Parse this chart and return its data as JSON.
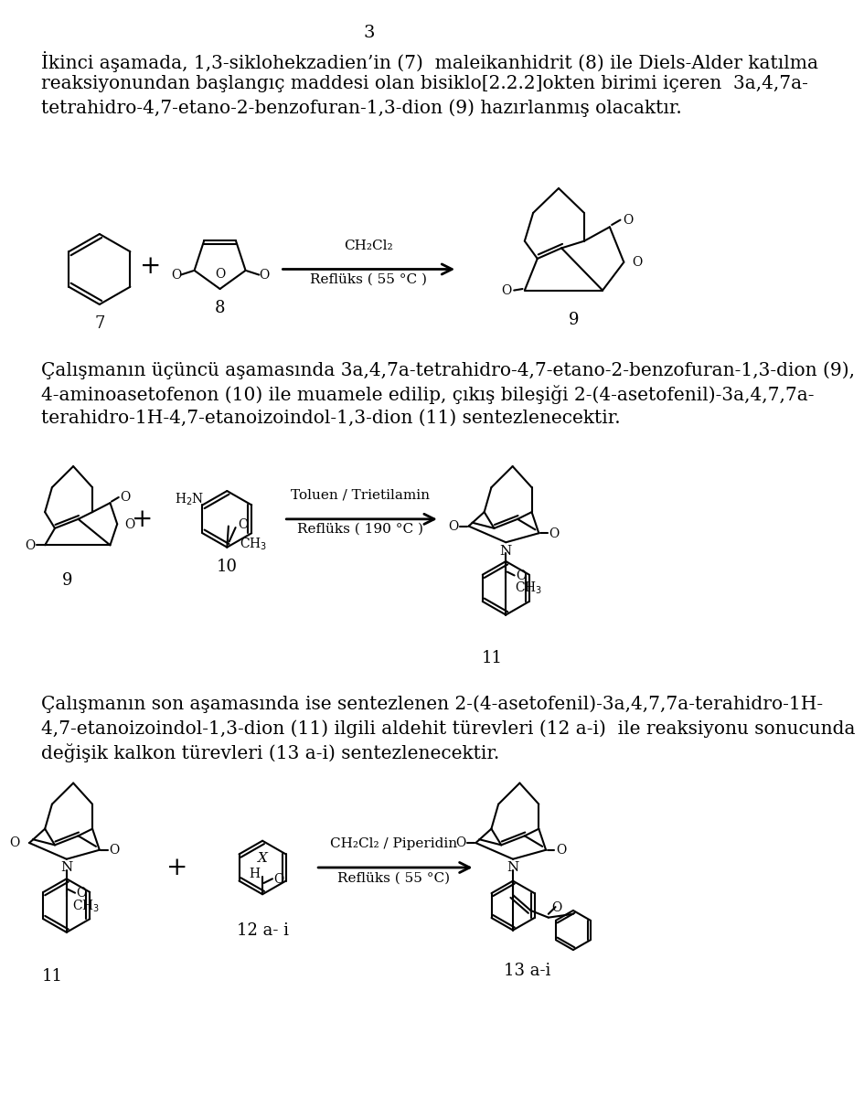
{
  "page_number": "3",
  "bg_color": "#ffffff",
  "para1_line1": "İkinci aşamada, 1,3-siklohekzadien’in (7)  maleikanhidrit (8) ile Diels-Alder katılma",
  "para1_line2": "reaksiyonundan başlangıç maddesi olan bisiklo[2.2.2]okten birimi içeren  3a,4,7a-",
  "para1_line3": "tetrahidro-4,7-etano-2-benzofuran-1,3-dion (9) hazırlanmış olacaktır.",
  "para2_line1": "Çalışmanın üçüncü aşamasında 3a,4,7a-tetrahidro-4,7-etano-2-benzofuran-1,3-dion (9),",
  "para2_line2": "4-aminoasetofenon (10) ile muamele edilip, çıkış bileşiği 2-(4-asetofenil)-3a,4,7,7a-",
  "para2_line3": "terahidro-1H-4,7-etanoizoindol-1,3-dion (11) sentezlenecektir.",
  "para3_line1": "Çalışmanın son aşamasında ise sentezlenen 2-(4-asetofenil)-3a,4,7,7a-terahidro-1H-",
  "para3_line2": "4,7-etanoizoindol-1,3-dion (11) ilgili aldehit türevleri (12 a-i)  ile reaksiyonu sonucunda",
  "para3_line3": "değişik kalkon türevleri (13 a-i) sentezlenecektir.",
  "rxn1_l1": "CH₂Cl₂",
  "rxn1_l2": "Reflüks ( 55 °C )",
  "rxn2_l1": "Toluen / Trietilamin",
  "rxn2_l2": "Reflüks ( 190 °C )",
  "rxn3_l1": "CH₂Cl₂ / Piperidin",
  "rxn3_l2": "Reflüks ( 55 °C)",
  "lbl7": "7",
  "lbl8": "8",
  "lbl9a": "9",
  "lbl9b": "9",
  "lbl10": "10",
  "lbl11a": "11",
  "lbl11b": "11",
  "lbl12": "12 a- i",
  "lbl13": "13 a-i",
  "bold7": "(7)",
  "bold8": "(8)",
  "bold9": "(9)",
  "bold10": "(10)",
  "bold11": "(11)",
  "bold12": "(12 a-i)",
  "bold13": "(13 a-i)"
}
